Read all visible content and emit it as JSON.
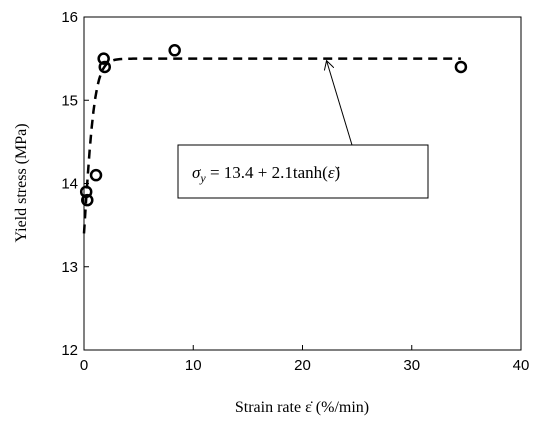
{
  "chart_data": {
    "type": "scatter",
    "xlabel": "Strain rate ε̇ (%/min)",
    "ylabel": "Yield stress  (MPa)",
    "xlim": [
      0,
      40
    ],
    "ylim": [
      12,
      16
    ],
    "x_ticks": [
      "0",
      "10",
      "20",
      "30",
      "40"
    ],
    "y_ticks": [
      "12",
      "13",
      "14",
      "15",
      "16"
    ],
    "grid": false,
    "legend": "none",
    "series": [
      {
        "kind": "scatter",
        "marker": "open-circle",
        "color": "#000000",
        "x": [
          0.2,
          0.3,
          1.1,
          1.8,
          1.9,
          8.3,
          34.5
        ],
        "y": [
          13.9,
          13.8,
          14.1,
          15.5,
          15.4,
          15.6,
          15.4
        ]
      },
      {
        "kind": "fit-line",
        "style": "dashed",
        "color": "#000000",
        "model": "13.4 + 2.1*tanh(x)",
        "x_range": [
          0.0,
          34.5
        ]
      }
    ],
    "annotation": {
      "equation_lhs": "σ",
      "equation_sub": "y",
      "equation_rhs": " = 13.4 + 2.1tanh(",
      "equation_var": "ε̇",
      "equation_close": ")",
      "arrow_target": [
        22.2,
        15.5
      ]
    }
  }
}
